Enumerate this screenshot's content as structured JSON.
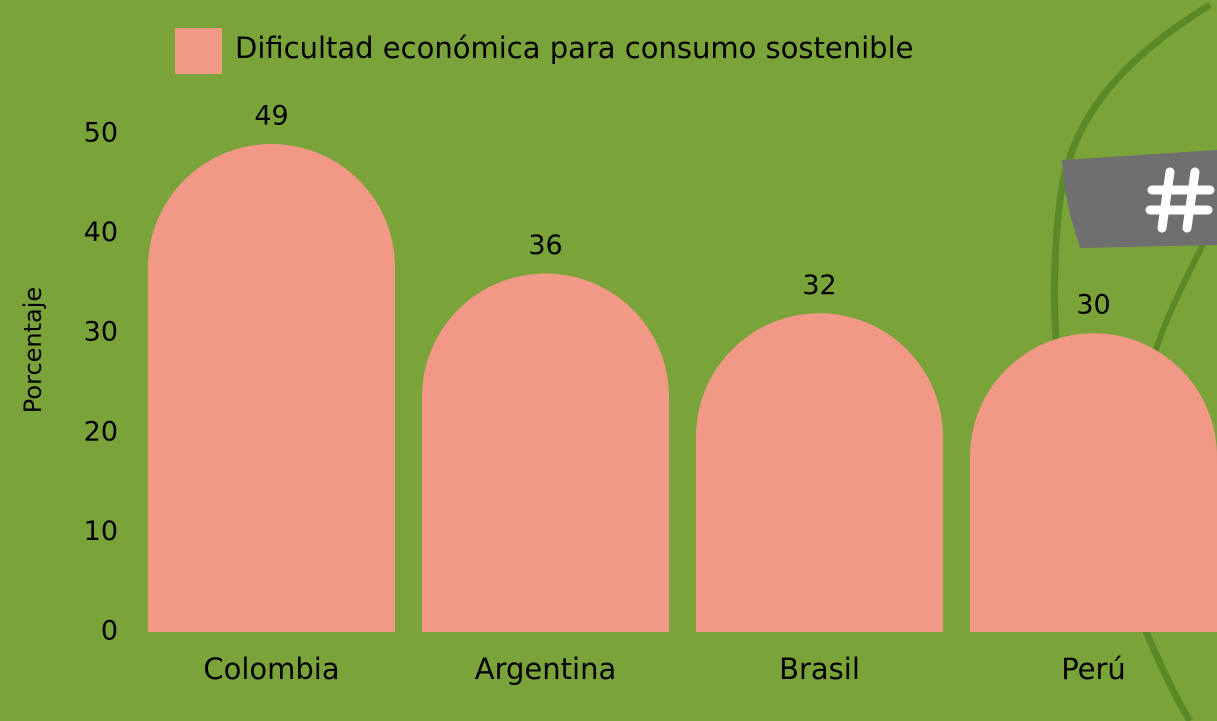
{
  "chart_data": {
    "type": "bar",
    "y_label": "Porcentaje",
    "categories": [
      "Colombia",
      "Argentina",
      "Brasil",
      "Perú"
    ],
    "series": [
      {
        "name": "Dificultad económica para consumo sostenible",
        "color": "#f29886",
        "values": [
          49,
          36,
          32,
          30
        ]
      }
    ],
    "ylim": [
      0,
      50
    ],
    "yticks": [
      0,
      10,
      20,
      30,
      40,
      50
    ],
    "grid": false,
    "legend": "top"
  }
}
